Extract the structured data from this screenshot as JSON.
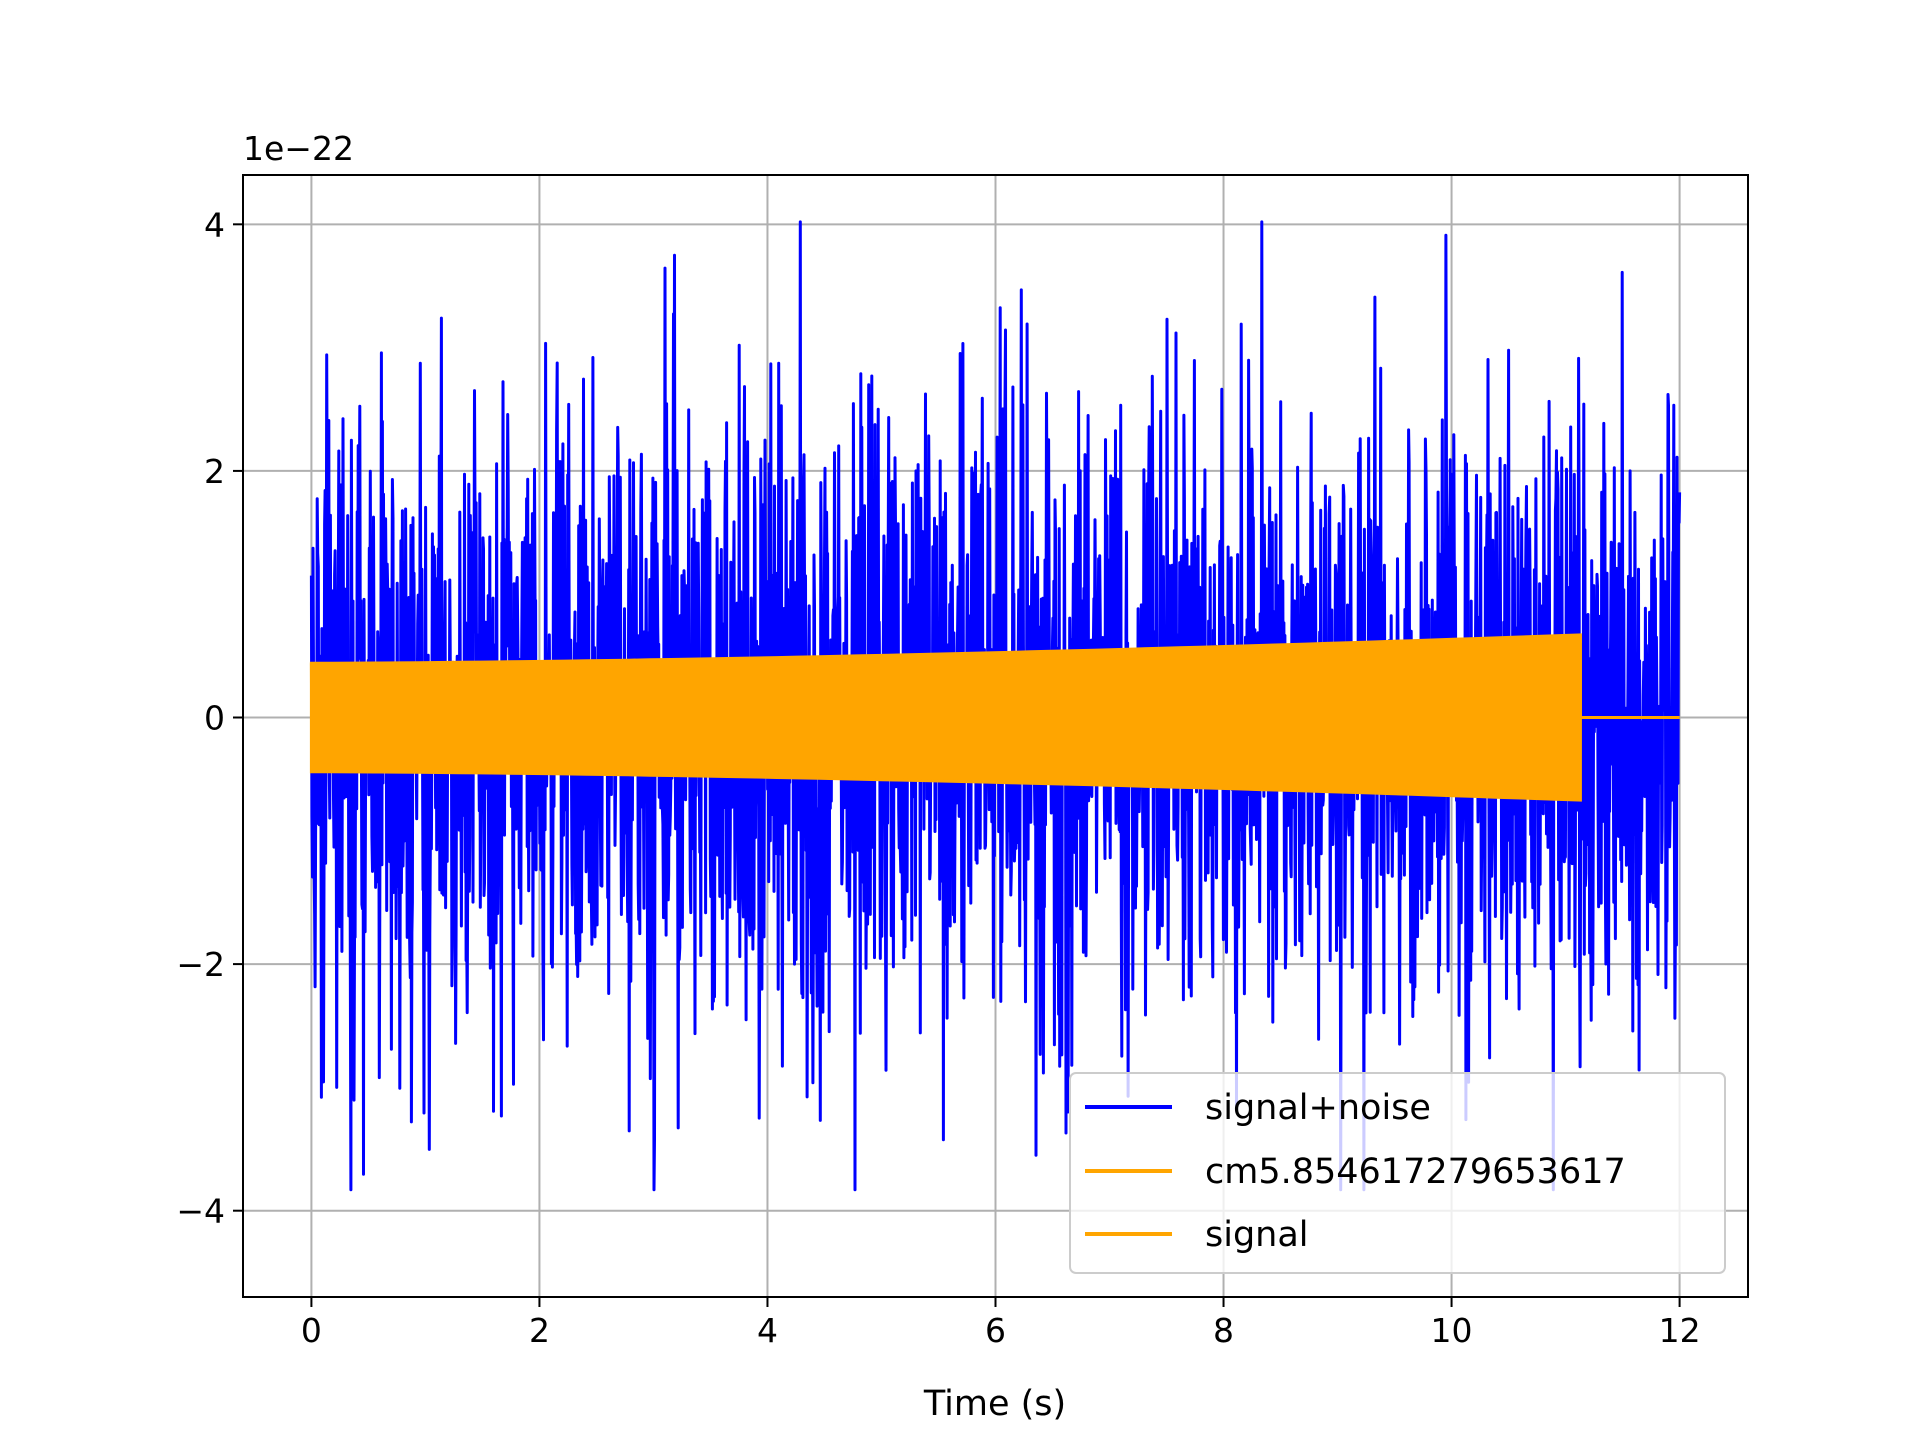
{
  "chart_data": {
    "type": "line",
    "title": "",
    "xlabel": "Time (s)",
    "ylabel": "",
    "offset_label": "1e−22",
    "xlim": [
      -0.6,
      12.6
    ],
    "ylim": [
      -4.7,
      4.4
    ],
    "xticks": [
      0,
      2,
      4,
      6,
      8,
      10,
      12
    ],
    "xtick_labels": [
      "0",
      "2",
      "4",
      "6",
      "8",
      "10",
      "12"
    ],
    "yticks": [
      -4,
      -2,
      0,
      2,
      4
    ],
    "ytick_labels": [
      "−4",
      "−2",
      "0",
      "2",
      "4"
    ],
    "grid": true,
    "legend_position": "lower-right",
    "series": [
      {
        "name": "signal+noise",
        "color": "#0000ff",
        "x_range": [
          0,
          12
        ],
        "typical_amplitude": 2.0,
        "max": 4.02,
        "min": -3.83
      },
      {
        "name": "cm5.854617279653617",
        "color": "#ffa500",
        "x_range": [
          0,
          11.13
        ],
        "envelope_start": 0.44,
        "envelope_end": 0.67
      },
      {
        "name": "signal",
        "color": "#ffa500",
        "x_range": [
          0,
          12
        ],
        "envelope_start": 0.44,
        "envelope_end": 0.67,
        "signal_end": 11.13
      }
    ]
  }
}
